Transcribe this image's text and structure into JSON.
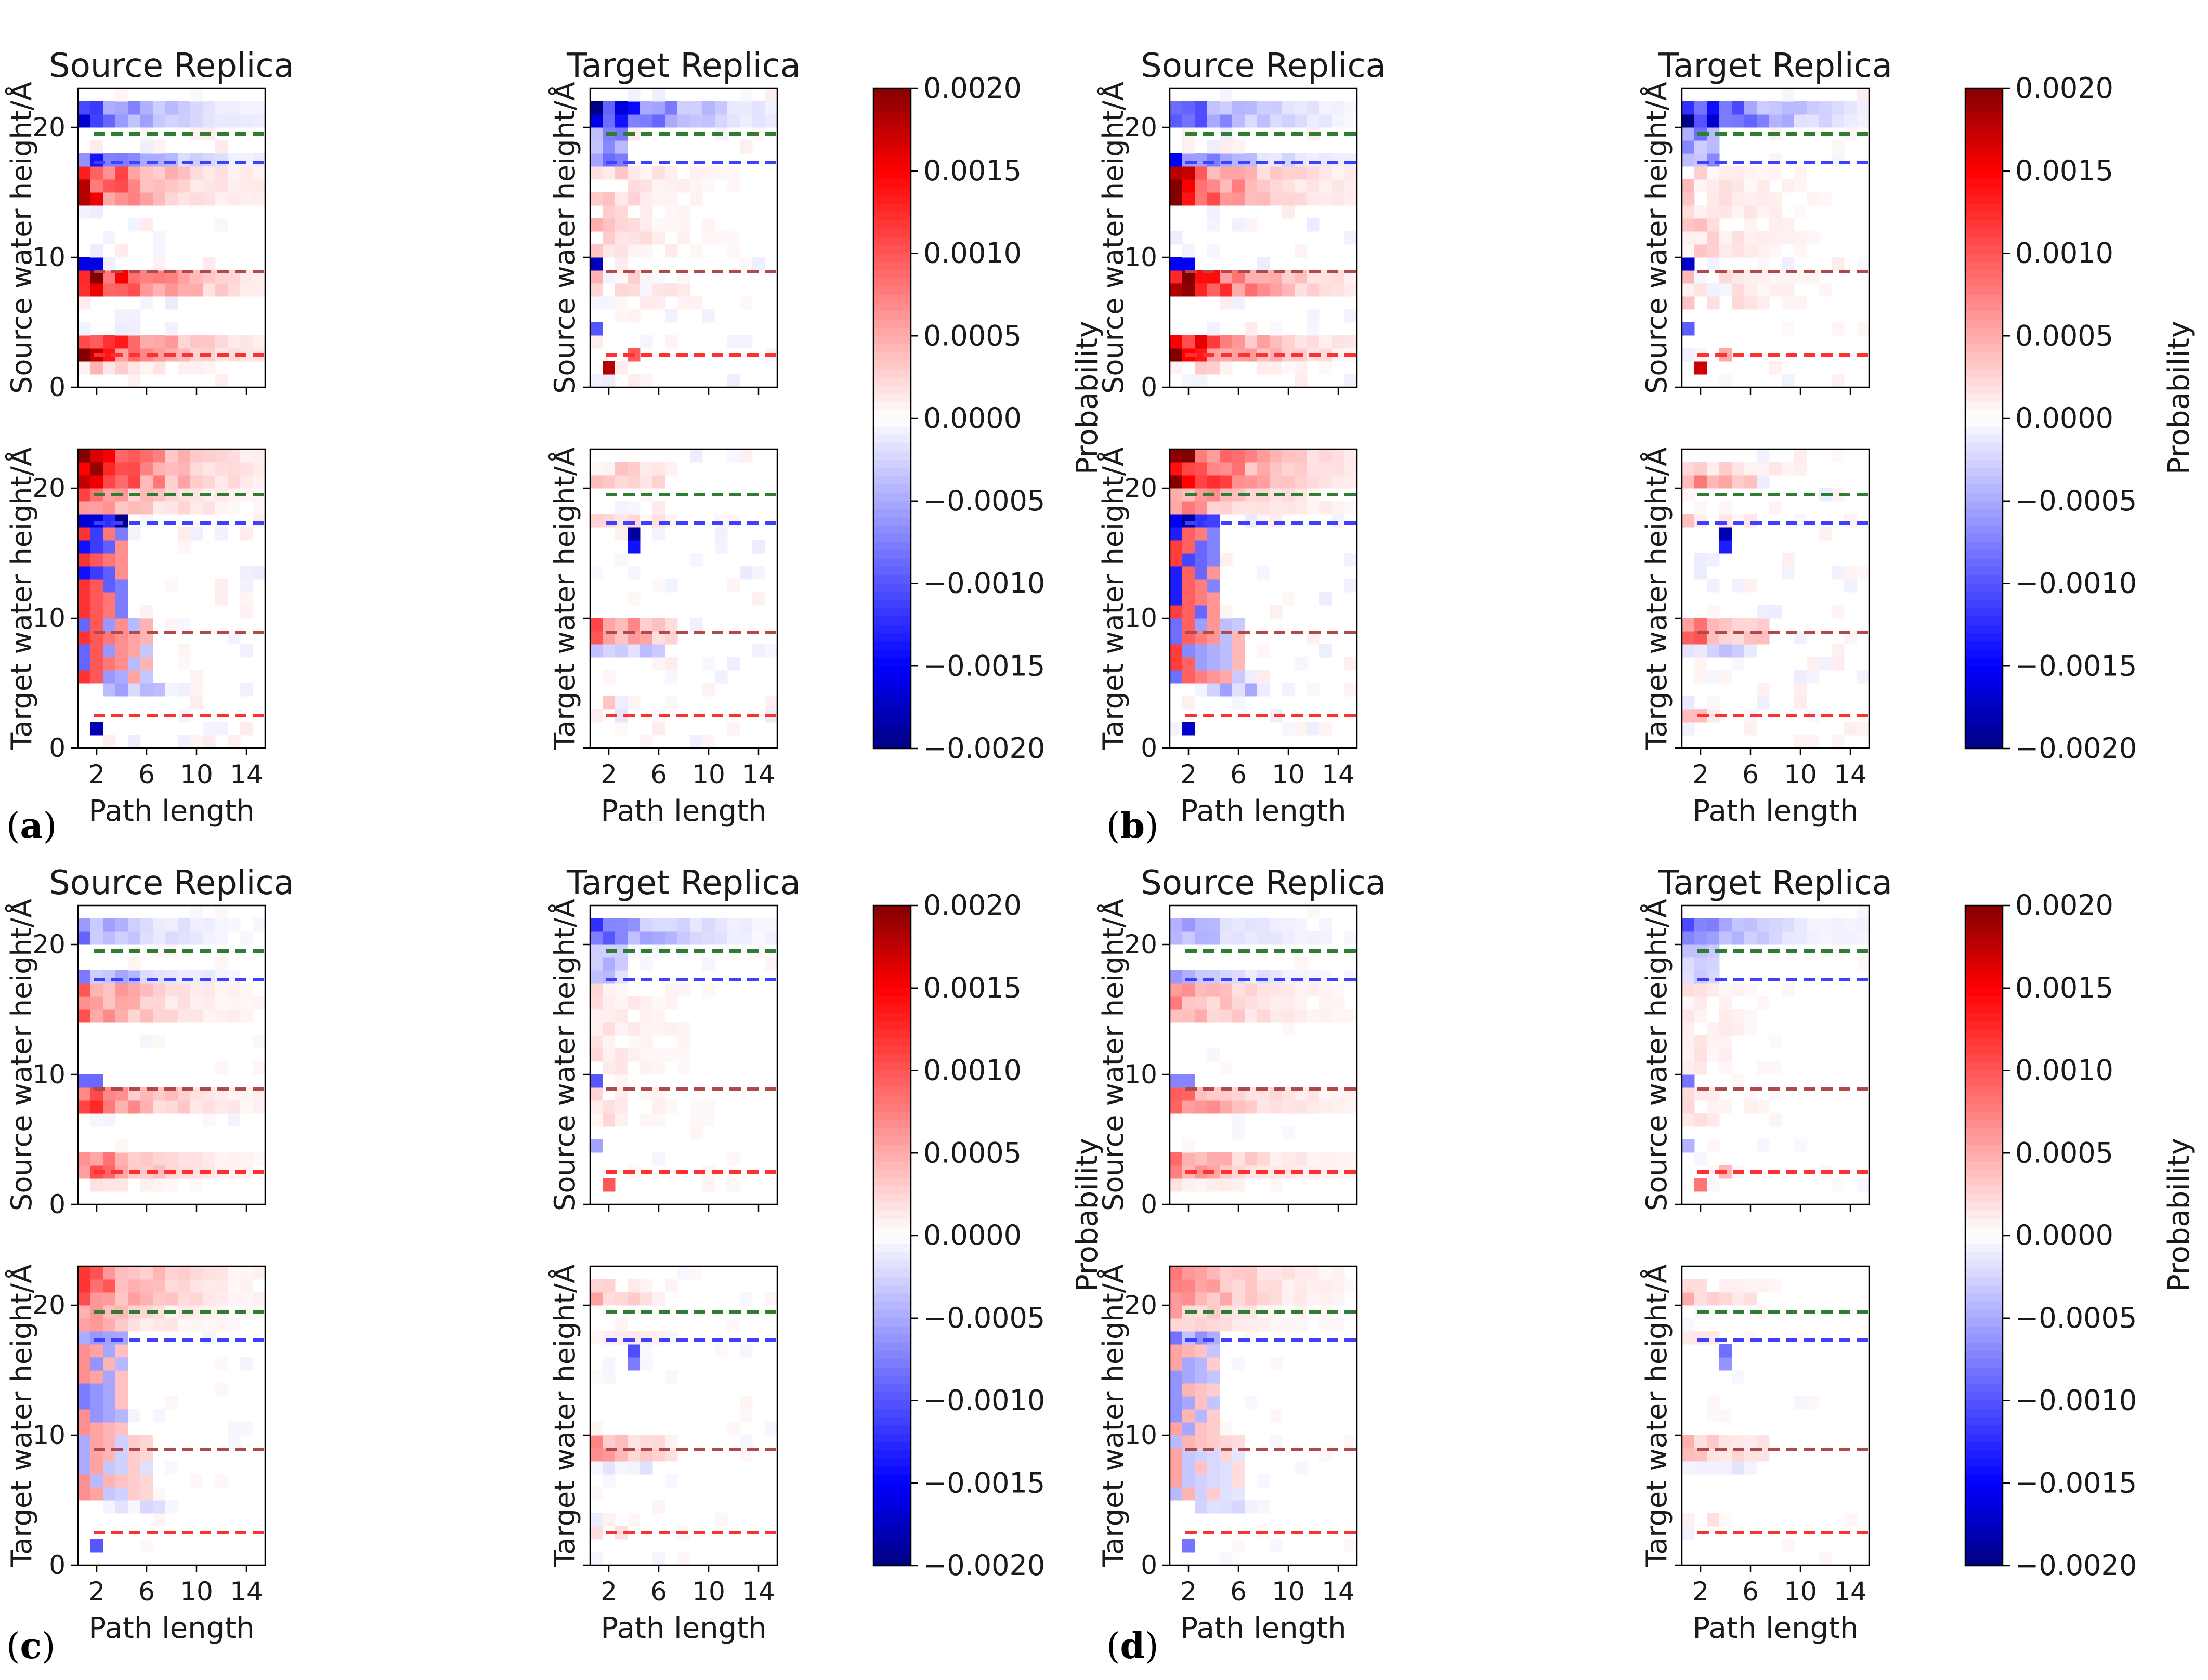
{
  "figure": {
    "panels": [
      {
        "letter_open": "(",
        "letter": "a",
        "letter_close": ")"
      },
      {
        "letter_open": "(",
        "letter": "b",
        "letter_close": ")"
      },
      {
        "letter_open": "(",
        "letter": "c",
        "letter_close": ")"
      },
      {
        "letter_open": "(",
        "letter": "d",
        "letter_close": ")"
      }
    ]
  },
  "chart_data": {
    "type": "heatmap",
    "column_titles": [
      "Source Replica",
      "Target Replica"
    ],
    "row_ylabels": [
      "Source water height/Å",
      "Target water height/Å"
    ],
    "xlabel": "Path length",
    "xticks": [
      2,
      6,
      10,
      14
    ],
    "yticks_left": [
      0,
      10,
      20
    ],
    "xlim": [
      0.5,
      15.5
    ],
    "ylim": [
      0,
      23
    ],
    "colormap": "seismic",
    "colorbar": {
      "label": "Probability",
      "min": -0.002,
      "max": 0.002,
      "ticks": [
        0.002,
        0.0015,
        0.001,
        0.0005,
        0.0,
        -0.0005,
        -0.001,
        -0.0015,
        -0.002
      ],
      "tick_labels": [
        "0.0020",
        "0.0015",
        "0.0010",
        "0.0005",
        "0.0000",
        "−0.0005",
        "−0.0010",
        "−0.0015",
        "−0.0020"
      ]
    },
    "reference_lines": [
      {
        "y": 19.5,
        "color": "#2e7d32"
      },
      {
        "y": 17.3,
        "color": "#3f3fff"
      },
      {
        "y": 8.9,
        "color": "#b04a4a"
      },
      {
        "y": 2.5,
        "color": "#ff3030"
      }
    ],
    "grid": false
  }
}
